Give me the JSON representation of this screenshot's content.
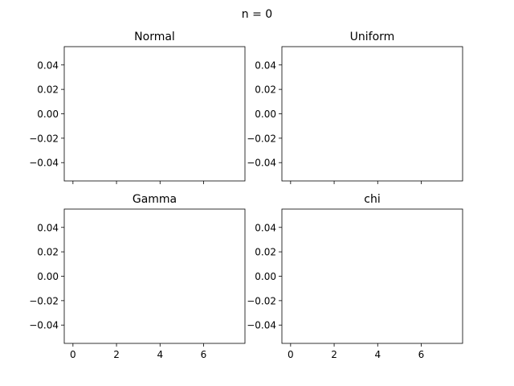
{
  "suptitle": "n = 0",
  "chart_data": [
    {
      "type": "line",
      "title": "Normal",
      "xlabel": "",
      "ylabel": "",
      "xlim": [
        -0.4,
        7.9
      ],
      "ylim": [
        -0.055,
        0.055
      ],
      "xticks": [
        0,
        2,
        4,
        6
      ],
      "yticks": [
        -0.04,
        -0.02,
        0.0,
        0.02,
        0.04
      ],
      "xtick_labels": [],
      "ytick_labels": [
        "−0.04",
        "−0.02",
        "0.00",
        "0.02",
        "0.04"
      ],
      "series": [],
      "grid": false
    },
    {
      "type": "line",
      "title": "Uniform",
      "xlabel": "",
      "ylabel": "",
      "xlim": [
        -0.4,
        7.9
      ],
      "ylim": [
        -0.055,
        0.055
      ],
      "xticks": [
        0,
        2,
        4,
        6
      ],
      "yticks": [
        -0.04,
        -0.02,
        0.0,
        0.02,
        0.04
      ],
      "xtick_labels": [],
      "ytick_labels": [
        "−0.04",
        "−0.02",
        "0.00",
        "0.02",
        "0.04"
      ],
      "series": [],
      "grid": false
    },
    {
      "type": "line",
      "title": "Gamma",
      "xlabel": "",
      "ylabel": "",
      "xlim": [
        -0.4,
        7.9
      ],
      "ylim": [
        -0.055,
        0.055
      ],
      "xticks": [
        0,
        2,
        4,
        6
      ],
      "yticks": [
        -0.04,
        -0.02,
        0.0,
        0.02,
        0.04
      ],
      "xtick_labels": [
        "0",
        "2",
        "4",
        "6"
      ],
      "ytick_labels": [
        "−0.04",
        "−0.02",
        "0.00",
        "0.02",
        "0.04"
      ],
      "series": [],
      "grid": false
    },
    {
      "type": "line",
      "title": "chi",
      "xlabel": "",
      "ylabel": "",
      "xlim": [
        -0.4,
        7.9
      ],
      "ylim": [
        -0.055,
        0.055
      ],
      "xticks": [
        0,
        2,
        4,
        6
      ],
      "yticks": [
        -0.04,
        -0.02,
        0.0,
        0.02,
        0.04
      ],
      "xtick_labels": [
        "0",
        "2",
        "4",
        "6"
      ],
      "ytick_labels": [
        "−0.04",
        "−0.02",
        "0.00",
        "0.02",
        "0.04"
      ],
      "series": [],
      "grid": false
    }
  ]
}
